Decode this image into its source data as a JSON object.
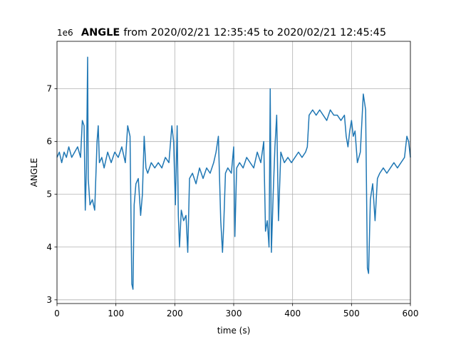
{
  "chart_data": {
    "type": "line",
    "title_bold": "ANGLE",
    "title": "from 2020/02/21 12:35:45 to 2020/02/21 12:45:45",
    "offset_text": "1e6",
    "xlabel": "time (s)",
    "ylabel": "ANGLE",
    "color": "#1f77b4",
    "grid": true,
    "xlim": [
      0,
      600
    ],
    "xticks": [
      0,
      100,
      200,
      300,
      400,
      500,
      600
    ],
    "ylim": [
      2.93,
      7.9
    ],
    "yticks": [
      3,
      4,
      5,
      6,
      7
    ],
    "x": [
      0,
      4,
      8,
      12,
      16,
      20,
      25,
      30,
      35,
      40,
      43,
      46,
      48,
      50,
      52,
      53,
      56,
      60,
      64,
      68,
      70,
      72,
      76,
      80,
      86,
      92,
      98,
      104,
      110,
      116,
      120,
      124,
      127,
      129,
      131,
      134,
      138,
      142,
      145,
      148,
      151,
      154,
      160,
      166,
      172,
      178,
      184,
      190,
      195,
      198,
      201,
      204,
      206,
      208,
      211,
      215,
      219,
      222,
      225,
      230,
      236,
      242,
      248,
      254,
      260,
      266,
      270,
      274,
      278,
      281,
      283,
      286,
      290,
      296,
      300,
      302,
      305,
      310,
      316,
      322,
      328,
      334,
      340,
      346,
      351,
      354,
      357,
      360,
      362,
      364,
      367,
      370,
      373,
      376,
      380,
      386,
      392,
      398,
      404,
      410,
      416,
      422,
      425,
      428,
      434,
      440,
      446,
      452,
      458,
      464,
      470,
      476,
      482,
      488,
      491,
      494,
      497,
      500,
      503,
      506,
      510,
      515,
      520,
      524,
      527,
      529,
      532,
      536,
      540,
      544,
      548,
      554,
      560,
      566,
      572,
      578,
      584,
      590,
      594,
      597,
      600
    ],
    "values": [
      5.7,
      5.8,
      5.6,
      5.8,
      5.7,
      5.9,
      5.7,
      5.8,
      5.9,
      5.7,
      6.4,
      6.3,
      4.7,
      5.5,
      7.6,
      5.3,
      4.8,
      4.9,
      4.7,
      6.0,
      6.3,
      5.6,
      5.7,
      5.5,
      5.8,
      5.6,
      5.8,
      5.7,
      5.9,
      5.6,
      6.3,
      6.1,
      3.3,
      3.2,
      4.8,
      5.2,
      5.3,
      4.6,
      5.0,
      6.1,
      5.5,
      5.4,
      5.6,
      5.5,
      5.6,
      5.5,
      5.7,
      5.6,
      6.3,
      6.0,
      4.8,
      6.3,
      4.6,
      4.0,
      4.7,
      4.5,
      4.6,
      3.9,
      5.3,
      5.4,
      5.2,
      5.5,
      5.3,
      5.5,
      5.4,
      5.6,
      5.8,
      6.1,
      4.5,
      3.9,
      4.4,
      5.4,
      5.5,
      5.4,
      5.9,
      4.2,
      5.5,
      5.6,
      5.5,
      5.7,
      5.6,
      5.5,
      5.8,
      5.6,
      6.0,
      4.3,
      4.5,
      4.0,
      7.0,
      3.9,
      5.0,
      5.9,
      6.5,
      4.5,
      5.8,
      5.6,
      5.7,
      5.6,
      5.7,
      5.8,
      5.7,
      5.8,
      5.9,
      6.5,
      6.6,
      6.5,
      6.6,
      6.5,
      6.4,
      6.6,
      6.5,
      6.5,
      6.4,
      6.5,
      6.1,
      5.9,
      6.2,
      6.4,
      6.1,
      6.2,
      5.6,
      5.8,
      6.9,
      6.6,
      3.6,
      3.5,
      4.9,
      5.2,
      4.5,
      5.3,
      5.4,
      5.5,
      5.4,
      5.5,
      5.6,
      5.5,
      5.6,
      5.7,
      6.1,
      6.0,
      5.7
    ]
  }
}
